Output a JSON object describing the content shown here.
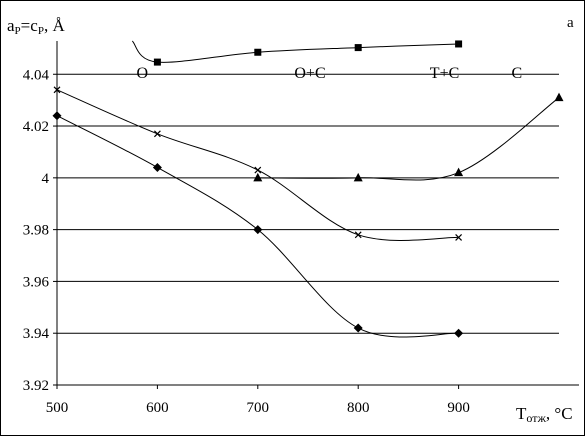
{
  "chart_data": {
    "type": "line",
    "panel_label": "a",
    "ylabel": {
      "main": "a",
      "sub": "P",
      "eq": "=c",
      "sub2": "P",
      "unit": ", Å"
    },
    "xlabel": {
      "main": "T",
      "sub": "отж",
      "unit": ", °C"
    },
    "xlim": [
      500,
      1000
    ],
    "ylim": [
      3.92,
      4.0513
    ],
    "xticks": [
      500,
      600,
      700,
      800,
      900
    ],
    "xtick_labels": [
      "500",
      "600",
      "700",
      "800",
      "900"
    ],
    "yticks": [
      3.92,
      3.94,
      3.96,
      3.98,
      4.0,
      4.02,
      4.04
    ],
    "ytick_labels": [
      "3.92",
      "3.94",
      "3.96",
      "3.98",
      "4",
      "4.02",
      "4.04"
    ],
    "grid": "horizontal",
    "series": [
      {
        "marker": "square",
        "x": [
          600,
          700,
          800,
          900
        ],
        "y": [
          4.0447,
          4.0485,
          4.0503,
          4.0517
        ],
        "color": "#000000",
        "clipped_start": true
      },
      {
        "marker": "x",
        "x": [
          500,
          600,
          700,
          800,
          900
        ],
        "y": [
          4.034,
          4.017,
          4.003,
          3.978,
          3.977
        ],
        "color": "#000000"
      },
      {
        "marker": "diamond",
        "x": [
          500,
          600,
          700,
          800,
          900
        ],
        "y": [
          4.024,
          4.004,
          3.98,
          3.942,
          3.94
        ],
        "color": "#000000"
      },
      {
        "marker": "triangle",
        "x": [
          700,
          800,
          900,
          1000
        ],
        "y": [
          4.0,
          4.0,
          4.002,
          4.031
        ],
        "color": "#000000"
      }
    ],
    "annotations": [
      {
        "text": "O",
        "x": 585,
        "y": 4.0385
      },
      {
        "text": "O+C",
        "x": 752,
        "y": 4.0385
      },
      {
        "text": "T+C",
        "x": 886,
        "y": 4.0385
      },
      {
        "text": "C",
        "x": 958,
        "y": 4.0385
      }
    ]
  }
}
